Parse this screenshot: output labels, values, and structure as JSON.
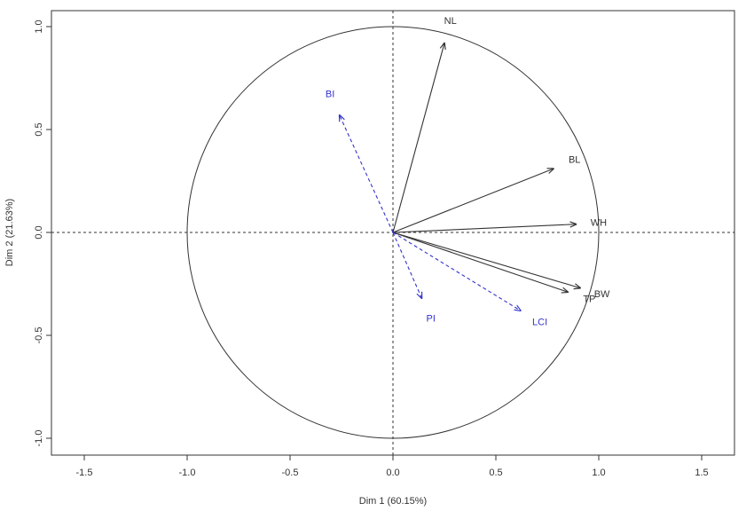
{
  "chart_data": {
    "type": "scatter",
    "subtype": "pca-correlation-circle",
    "title": "",
    "xlabel": "Dim 1 (60.15%)",
    "ylabel": "Dim 2 (21.63%)",
    "xlim": [
      -1.65,
      1.65
    ],
    "ylim": [
      -1.08,
      1.08
    ],
    "xticks": [
      "-1.5",
      "-1.0",
      "-0.5",
      "0.0",
      "0.5",
      "1.0",
      "1.5"
    ],
    "yticks": [
      "-1.0",
      "-0.5",
      "0.0",
      "0.5",
      "1.0"
    ],
    "unit_circle": true,
    "grid": false,
    "reference_lines": "dashed at x=0 and y=0",
    "series": [
      {
        "style": "active",
        "color": "#333333",
        "line": "solid",
        "points": [
          {
            "label": "NL",
            "x": 0.25,
            "y": 0.92
          },
          {
            "label": "BL",
            "x": 0.78,
            "y": 0.31
          },
          {
            "label": "WH",
            "x": 0.89,
            "y": 0.04
          },
          {
            "label": "TP",
            "x": 0.85,
            "y": -0.29
          },
          {
            "label": "BW",
            "x": 0.91,
            "y": -0.27
          }
        ]
      },
      {
        "style": "supplementary",
        "color": "#3333cc",
        "line": "dashed",
        "points": [
          {
            "label": "BI",
            "x": -0.26,
            "y": 0.57
          },
          {
            "label": "PI",
            "x": 0.14,
            "y": -0.32
          },
          {
            "label": "LCI",
            "x": 0.62,
            "y": -0.38
          }
        ]
      }
    ]
  }
}
